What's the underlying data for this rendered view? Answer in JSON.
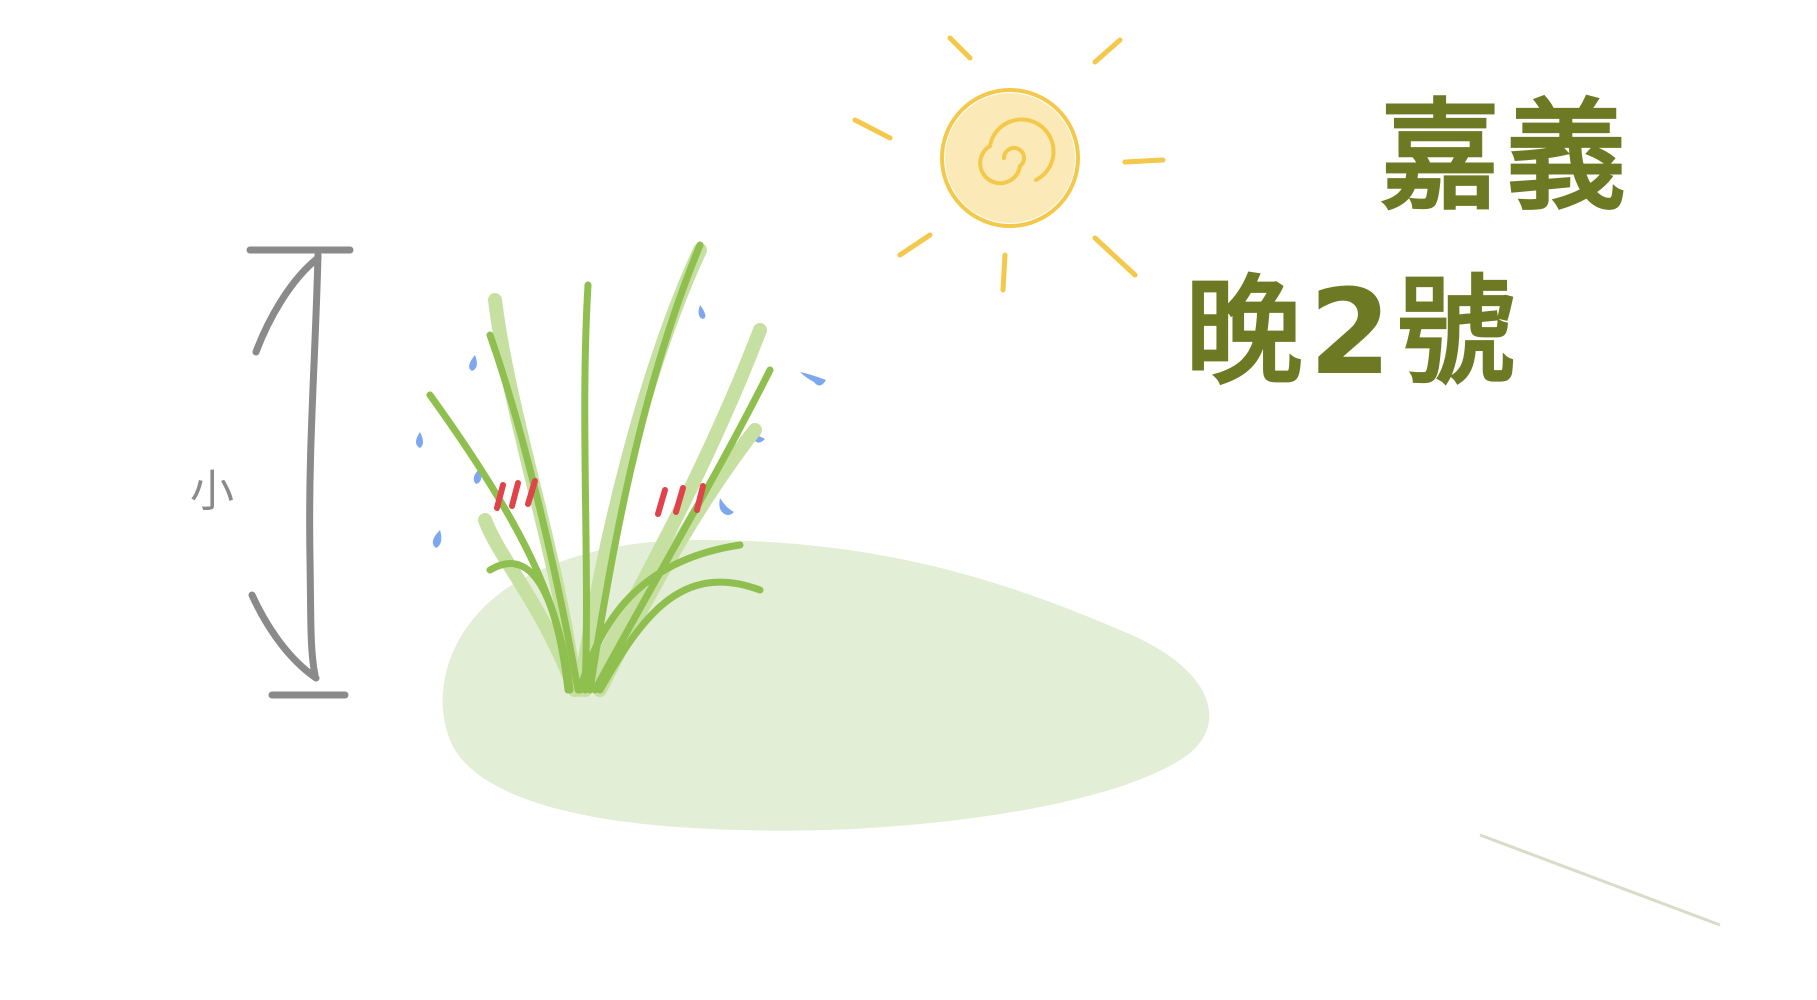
{
  "scene": {
    "title_line_1": "嘉義",
    "title_line_2": "晚2號",
    "scale_label": "小"
  },
  "colors": {
    "background": "#ffffff",
    "title": "#6e7a23",
    "sun_outline": "#f4c84a",
    "sun_fill": "#fbeab8",
    "grass_dark": "#8fbf4f",
    "grass_light": "#c6e0a2",
    "ground": "#e2eed6",
    "water_drop": "#7da7ef",
    "stress_mark": "#e0434a",
    "scale_arrow": "#8a8a8a"
  },
  "icons": {
    "sun": "sun-icon",
    "plant": "rice-plant-icon",
    "water": "water-drop-icon",
    "height_arrow": "height-arrow-icon"
  }
}
